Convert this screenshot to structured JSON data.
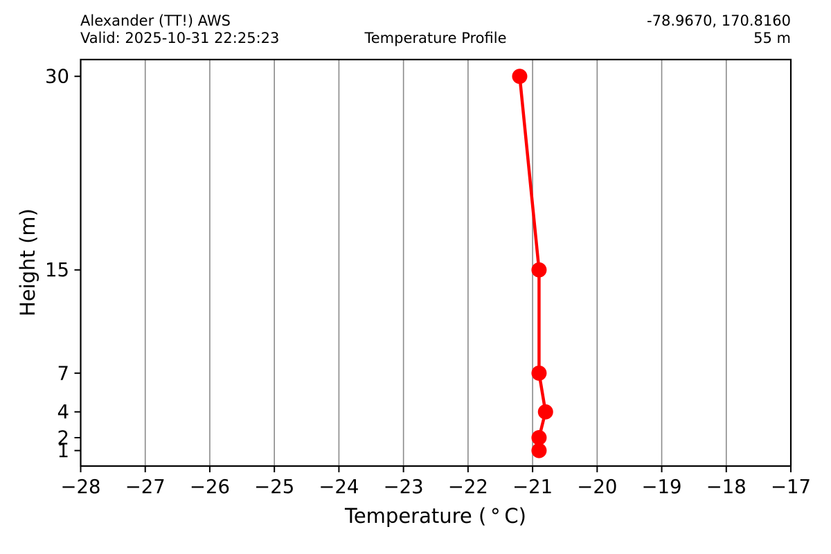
{
  "figure": {
    "station": "Alexander (TT!) AWS",
    "valid": "Valid: 2025-10-31 22:25:23",
    "title": "Temperature Profile",
    "coordinates": "-78.9670, 170.8160",
    "elevation": "55 m"
  },
  "chart_data": {
    "type": "line",
    "title": "Temperature Profile",
    "xlabel": "Temperature ( ° C)",
    "ylabel": "Height (m)",
    "xlim": [
      -28,
      -17
    ],
    "ylim": [
      -0.2,
      31.3
    ],
    "xticks": [
      -28,
      -27,
      -26,
      -25,
      -24,
      -23,
      -22,
      -21,
      -20,
      -19,
      -18,
      -17
    ],
    "yticks": [
      1,
      2,
      4,
      7,
      15,
      30
    ],
    "grid": "vertical-only",
    "legend": "none",
    "series": [
      {
        "name": "temperature-profile",
        "color": "#ff0000",
        "marker": "circle",
        "x": [
          -20.9,
          -20.9,
          -20.8,
          -20.9,
          -20.9,
          -21.2
        ],
        "y": [
          1,
          2,
          4,
          7,
          15,
          30
        ]
      }
    ]
  },
  "style": {
    "background": "#ffffff",
    "grid_color": "#8a8a8a",
    "axis_color": "#000000",
    "tick_label_color": "#000000",
    "line_color": "#ff0000"
  }
}
